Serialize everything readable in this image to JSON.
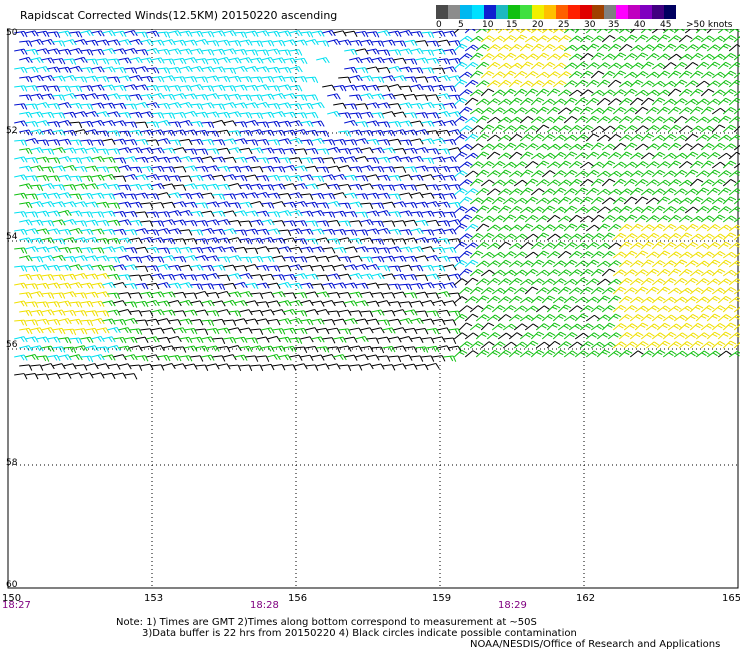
{
  "title": "Rapidscat Corrected Winds(12.5KM) 20150220 ascending",
  "legend": {
    "colors": [
      "#4a4a4a",
      "#8c8c8c",
      "#00b8f0",
      "#00e0ff",
      "#1020d0",
      "#1db9c0",
      "#10c010",
      "#40e040",
      "#f0f000",
      "#ffc000",
      "#ff6000",
      "#ff2000",
      "#e00000",
      "#a04000",
      "#808080",
      "#ff00ff",
      "#c000c0",
      "#8000c0",
      "#400080",
      "#000060"
    ],
    "labels": [
      "0",
      "5",
      "10",
      "15",
      "20",
      "25",
      "30",
      "35",
      "40",
      "45",
      ">50 knots"
    ]
  },
  "map": {
    "x_ticks": [
      "150",
      "153",
      "156",
      "159",
      "162",
      "165"
    ],
    "y_ticks": [
      "50",
      "52",
      "54",
      "56",
      "58",
      "60"
    ],
    "time_labels": [
      "18:27",
      "18:28",
      "18:29"
    ],
    "wind_colors": {
      "calm": "#000000",
      "light": "#00e0f0",
      "moderate": "#0010d0",
      "fresh": "#10c010",
      "strong": "#f0e000"
    }
  },
  "note": {
    "line1": "Note: 1) Times are GMT 2)Times along bottom correspond to measurement at ~50S",
    "line2": "3)Data buffer is 22 hrs from 20150220 4) Black circles indicate possible contamination"
  },
  "credit": "NOAA/NESDIS/Office of Research and Applications"
}
